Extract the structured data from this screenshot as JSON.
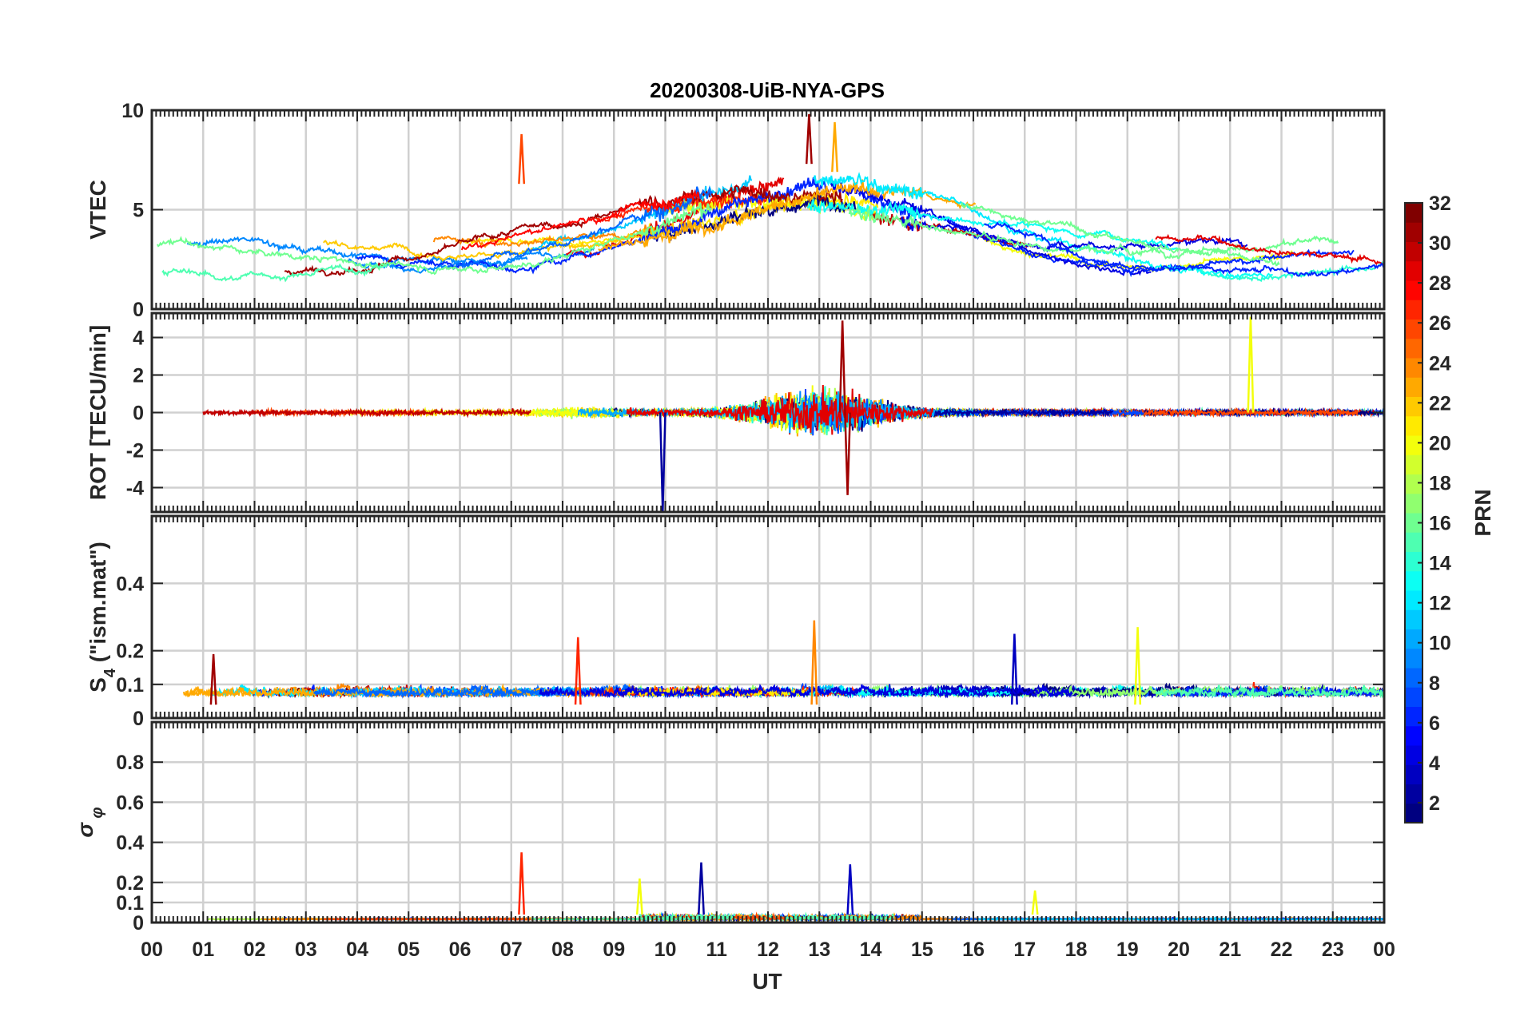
{
  "figure": {
    "title": "20200308-UiB-NYA-GPS",
    "xlabel": "UT",
    "x_ticks": [
      "00",
      "01",
      "02",
      "03",
      "04",
      "05",
      "06",
      "07",
      "08",
      "09",
      "10",
      "11",
      "12",
      "13",
      "14",
      "15",
      "16",
      "17",
      "18",
      "19",
      "20",
      "21",
      "22",
      "23",
      "00"
    ]
  },
  "colorbar": {
    "label": "PRN",
    "range": [
      1,
      32
    ],
    "ticks": [
      "2",
      "4",
      "6",
      "8",
      "10",
      "12",
      "14",
      "16",
      "18",
      "20",
      "22",
      "24",
      "26",
      "28",
      "30",
      "32"
    ],
    "colormap": "jet"
  },
  "chart_data": [
    {
      "type": "line",
      "ylabel": "VTEC",
      "ylim": [
        0,
        10
      ],
      "yticks": [
        "0",
        "5",
        "10"
      ],
      "xlim": [
        0,
        24
      ],
      "grid": true,
      "series_color_by": "PRN",
      "events": [
        {
          "t": 7.2,
          "val": 8.8,
          "prn": 26
        },
        {
          "t": 12.8,
          "val": 9.8,
          "prn": 31
        },
        {
          "t": 13.3,
          "val": 9.4,
          "prn": 23
        }
      ],
      "description_values": {
        "typical_range": [
          1.5,
          6.5
        ],
        "peak_hour": 13
      }
    },
    {
      "type": "line",
      "ylabel": "ROT [TECU/min]",
      "ylim": [
        -5.3,
        5.3
      ],
      "yticks": [
        "-4",
        "-2",
        "0",
        "2",
        "4"
      ],
      "xlim": [
        0,
        24
      ],
      "grid": true,
      "events": [
        {
          "t": 9.95,
          "val": -5.3,
          "prn": 2
        },
        {
          "t": 13.45,
          "val": 4.9,
          "prn": 31
        },
        {
          "t": 21.4,
          "val": 5.1,
          "prn": 20
        },
        {
          "t": 13.55,
          "val": -4.4,
          "prn": 31
        }
      ]
    },
    {
      "type": "line",
      "ylabel": "S4 (\"ism.mat\")",
      "ylim": [
        0,
        0.6
      ],
      "yticks": [
        "0",
        "0.1",
        "0.2",
        "0.4"
      ],
      "xlim": [
        0,
        24
      ],
      "grid": true,
      "events": [
        {
          "t": 1.2,
          "val": 0.19,
          "prn": 31
        },
        {
          "t": 8.3,
          "val": 0.24,
          "prn": 27
        },
        {
          "t": 12.9,
          "val": 0.29,
          "prn": 24
        },
        {
          "t": 16.8,
          "val": 0.25,
          "prn": 3
        },
        {
          "t": 19.2,
          "val": 0.27,
          "prn": 20
        }
      ]
    },
    {
      "type": "line",
      "ylabel": "σ",
      "ylabel_subscript": "φ",
      "ylim": [
        0,
        1.0
      ],
      "yticks": [
        "0",
        "0.1",
        "0.2",
        "0.4",
        "0.6",
        "0.8"
      ],
      "xlim": [
        0,
        24
      ],
      "grid": true,
      "events": [
        {
          "t": 7.2,
          "val": 0.35,
          "prn": 27
        },
        {
          "t": 9.5,
          "val": 0.22,
          "prn": 20
        },
        {
          "t": 10.7,
          "val": 0.3,
          "prn": 2
        },
        {
          "t": 13.6,
          "val": 0.29,
          "prn": 3
        },
        {
          "t": 17.2,
          "val": 0.16,
          "prn": 20
        }
      ]
    }
  ]
}
